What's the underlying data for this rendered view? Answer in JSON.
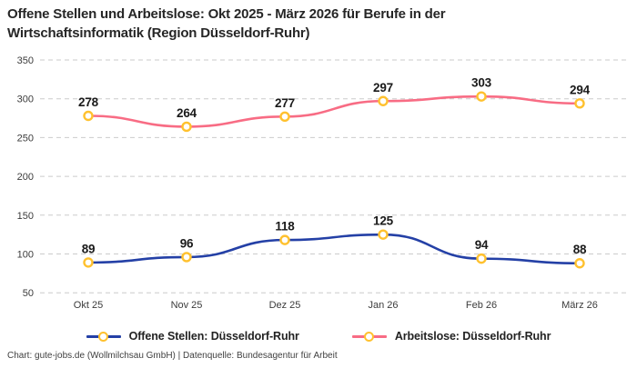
{
  "title": {
    "line1": "Offene Stellen und Arbeitslose: Okt 2025 - März 2026 für Berufe in der",
    "line2": "Wirtschaftsinformatik (Region Düsseldorf-Ruhr)"
  },
  "footer": {
    "text": "Chart: gute-jobs.de (Wollmilchsau GmbH) | Datenquelle: Bundesagentur für Arbeit"
  },
  "chart_data": {
    "type": "line",
    "title": "Offene Stellen und Arbeitslose: Okt 2025 - März 2026 für Berufe in der Wirtschaftsinformatik (Region Düsseldorf-Ruhr)",
    "categories": [
      "Okt 25",
      "Nov 25",
      "Dez 25",
      "Jan 26",
      "Feb 26",
      "März 26"
    ],
    "series": [
      {
        "name": "Offene Stellen: Düsseldorf-Ruhr",
        "values": [
          89,
          96,
          118,
          125,
          94,
          88
        ],
        "color": "#2440A6"
      },
      {
        "name": "Arbeitslose: Düsseldorf-Ruhr",
        "values": [
          278,
          264,
          277,
          297,
          303,
          294
        ],
        "color": "#F86C84"
      }
    ],
    "marker_color": "#FFC12E",
    "marker_fill": "#FFFFFF",
    "y_ticks": [
      50,
      100,
      150,
      200,
      250,
      300,
      350
    ],
    "ylim": [
      50,
      350
    ],
    "xlabel": "",
    "ylabel": "",
    "grid": "dashed-horizontal",
    "gridline_color": "#CBCBCB",
    "tick_label_color": "#3B3B3B",
    "data_label_color": "#1A1A1A",
    "legend_position": "bottom",
    "curve": "smooth"
  }
}
